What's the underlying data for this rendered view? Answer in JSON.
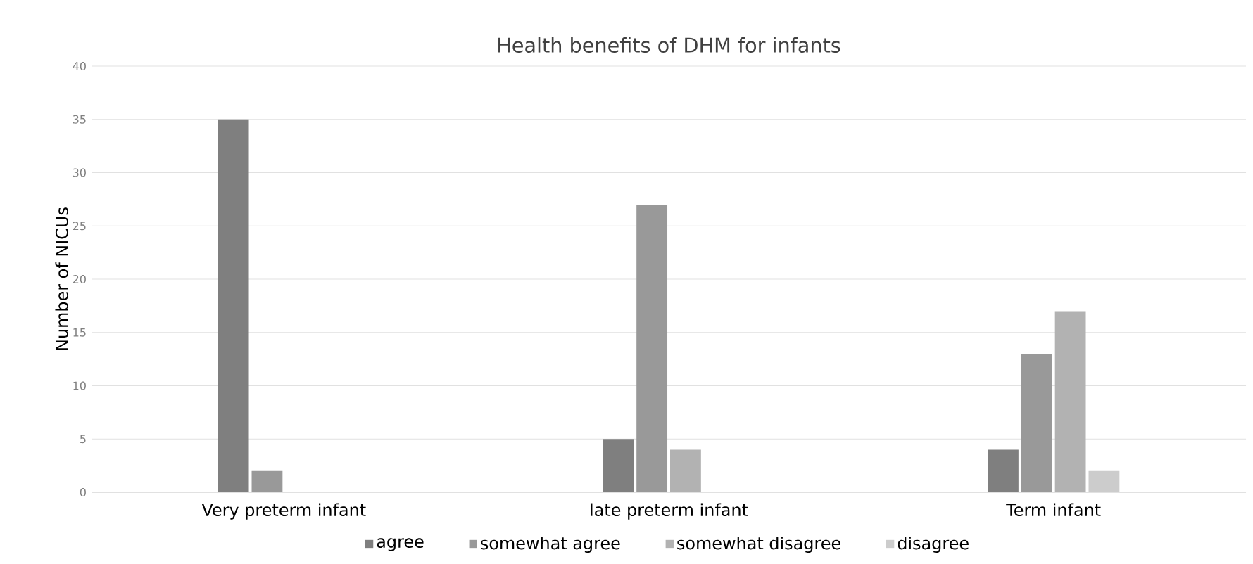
{
  "chart_data": {
    "type": "bar",
    "title": "Health benefits of DHM for infants",
    "ylabel": "Number of NICUs",
    "categories": [
      "Very preterm infant",
      "late preterm infant",
      "Term infant"
    ],
    "series": [
      {
        "name": "agree",
        "color": "#7f7f7f",
        "values": [
          35,
          5,
          4
        ]
      },
      {
        "name": "somewhat agree",
        "color": "#999999",
        "values": [
          2,
          27,
          13
        ]
      },
      {
        "name": "somewhat disagree",
        "color": "#b2b2b2",
        "values": [
          0,
          4,
          17
        ]
      },
      {
        "name": "disagree",
        "color": "#cccccc",
        "values": [
          0,
          0,
          2
        ]
      }
    ],
    "ylim": [
      0,
      40
    ],
    "yticks": [
      0,
      5,
      10,
      15,
      20,
      25,
      30,
      35,
      40
    ],
    "grid": "y",
    "legend": "bottom"
  }
}
